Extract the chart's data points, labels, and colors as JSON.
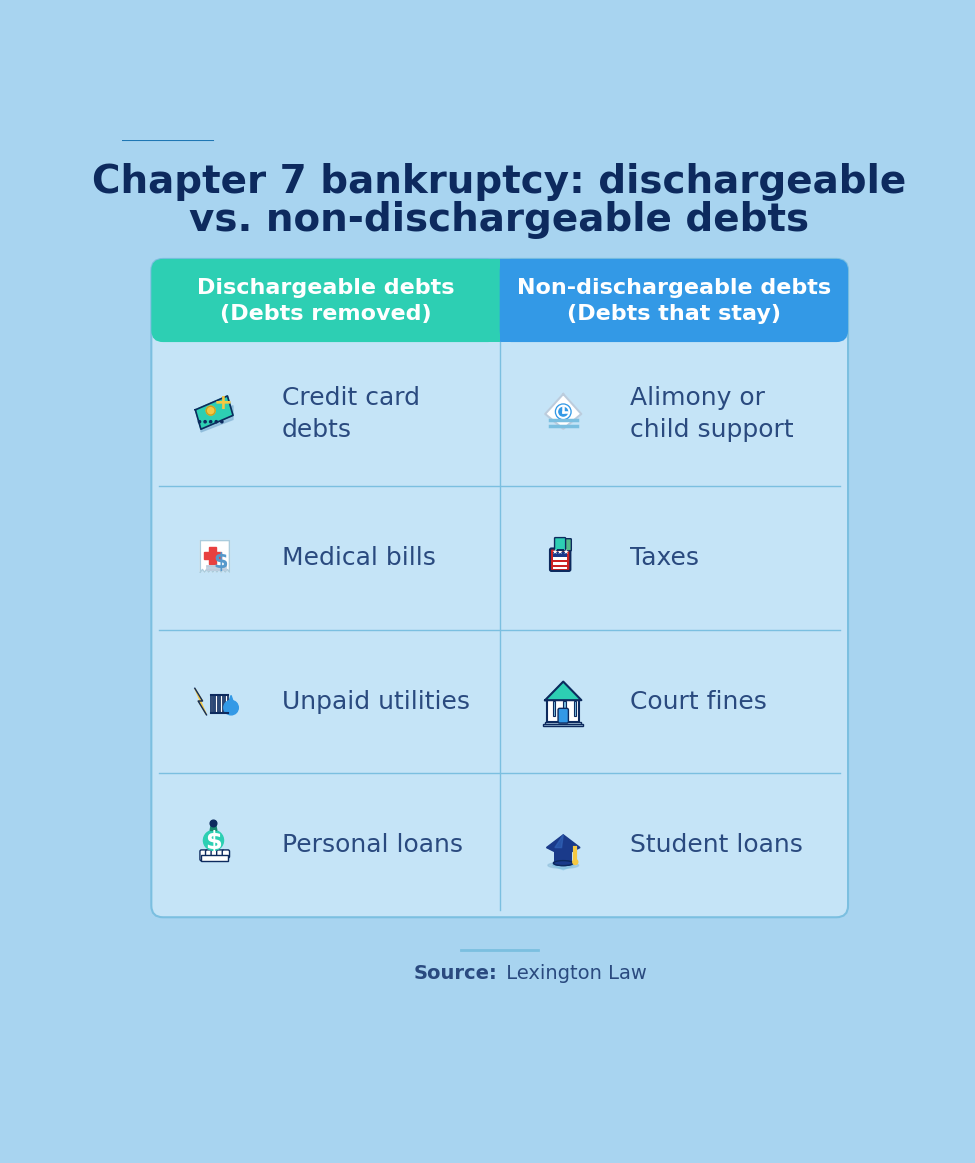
{
  "bg_color": "#a8d4f0",
  "title_line1": "Chapter 7 bankruptcy: dischargeable",
  "title_line2": "vs. non-dischargeable debts",
  "title_color": "#0d2a5e",
  "title_fontsize": 28,
  "table_bg": "#c5e4f7",
  "table_border_color": "#7bbfe0",
  "left_header_color": "#2dcfb3",
  "right_header_color": "#3399e6",
  "header_text_color": "#ffffff",
  "header_left_line1": "Dischargeable debts",
  "header_left_line2": "(Debts removed)",
  "header_right_line1": "Non-dischargeable debts",
  "header_right_line2": "(Debts that stay)",
  "header_fontsize": 16,
  "cell_text_color": "#2a4a7f",
  "cell_fontsize": 18,
  "left_items": [
    "Credit card\ndebts",
    "Medical bills",
    "Unpaid utilities",
    "Personal loans"
  ],
  "right_items": [
    "Alimony or\nchild support",
    "Taxes",
    "Court fines",
    "Student loans"
  ],
  "source_bold": "Source:",
  "source_regular": " Lexington Law",
  "source_fontsize": 14,
  "source_color": "#2a4a7f",
  "divider_color": "#7bbfe0"
}
